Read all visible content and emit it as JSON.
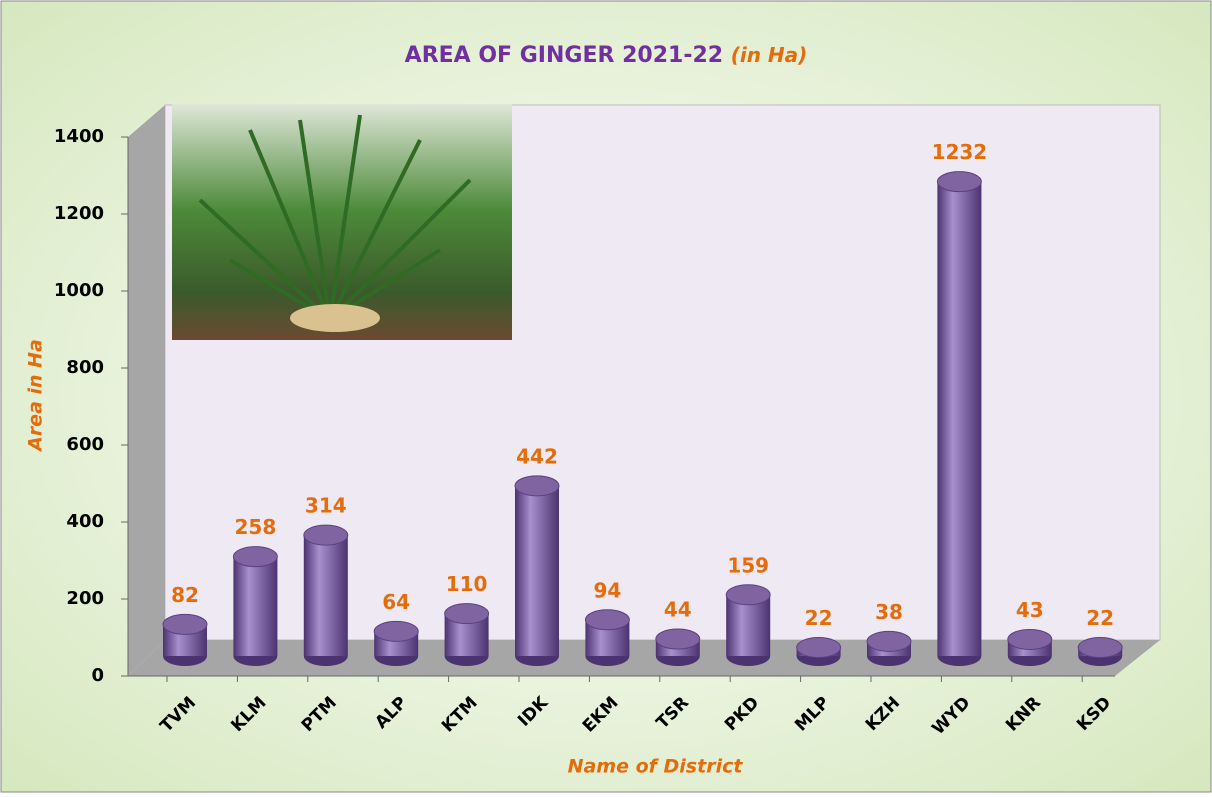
{
  "chart_data": {
    "type": "bar",
    "title": "AREA OF GINGER 2021-22",
    "title_unit": "(in Ha)",
    "x_label": "Name of District",
    "y_label": "Area in Ha",
    "categories": [
      "TVM",
      "KLM",
      "PTM",
      "ALP",
      "KTM",
      "IDK",
      "EKM",
      "TSR",
      "PKD",
      "MLP",
      "KZH",
      "WYD",
      "KNR",
      "KSD"
    ],
    "values": [
      82,
      258,
      314,
      64,
      110,
      442,
      94,
      44,
      159,
      22,
      38,
      1232,
      43,
      22
    ],
    "color": "#8064a2",
    "ylim": [
      0,
      1400
    ],
    "yticks": [
      0,
      200,
      400,
      600,
      800,
      1000,
      1200,
      1400
    ]
  }
}
